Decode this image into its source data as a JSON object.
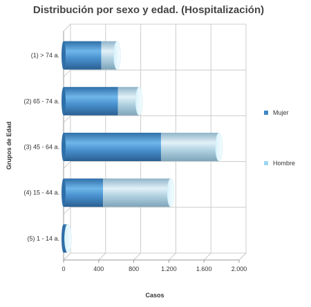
{
  "chart_data": {
    "type": "bar",
    "orientation": "horizontal",
    "stacked": true,
    "title": "Distribución por sexo y edad. (Hospitalización)",
    "xlabel": "Casos",
    "ylabel": "Grupos de Edad",
    "xlim": [
      0,
      2000
    ],
    "x_ticks": [
      0,
      400,
      800,
      1200,
      1600,
      2000
    ],
    "x_tick_labels": [
      "0",
      "400",
      "800",
      "1.200",
      "1.600",
      "2.000"
    ],
    "categories": [
      "(1) > 74 a.",
      "(2) 65 - 74 a.",
      "(3) 45 - 64 a.",
      "(4) 15 - 44 a.",
      "(5) 1 - 14 a."
    ],
    "series": [
      {
        "name": "Mujer",
        "values": [
          430,
          620,
          1110,
          450,
          30
        ],
        "color": "#3d87c4"
      },
      {
        "name": "Hombre",
        "values": [
          180,
          240,
          660,
          770,
          20
        ],
        "color": "#9fd8f0"
      }
    ],
    "grid": true,
    "legend_position": "right"
  }
}
